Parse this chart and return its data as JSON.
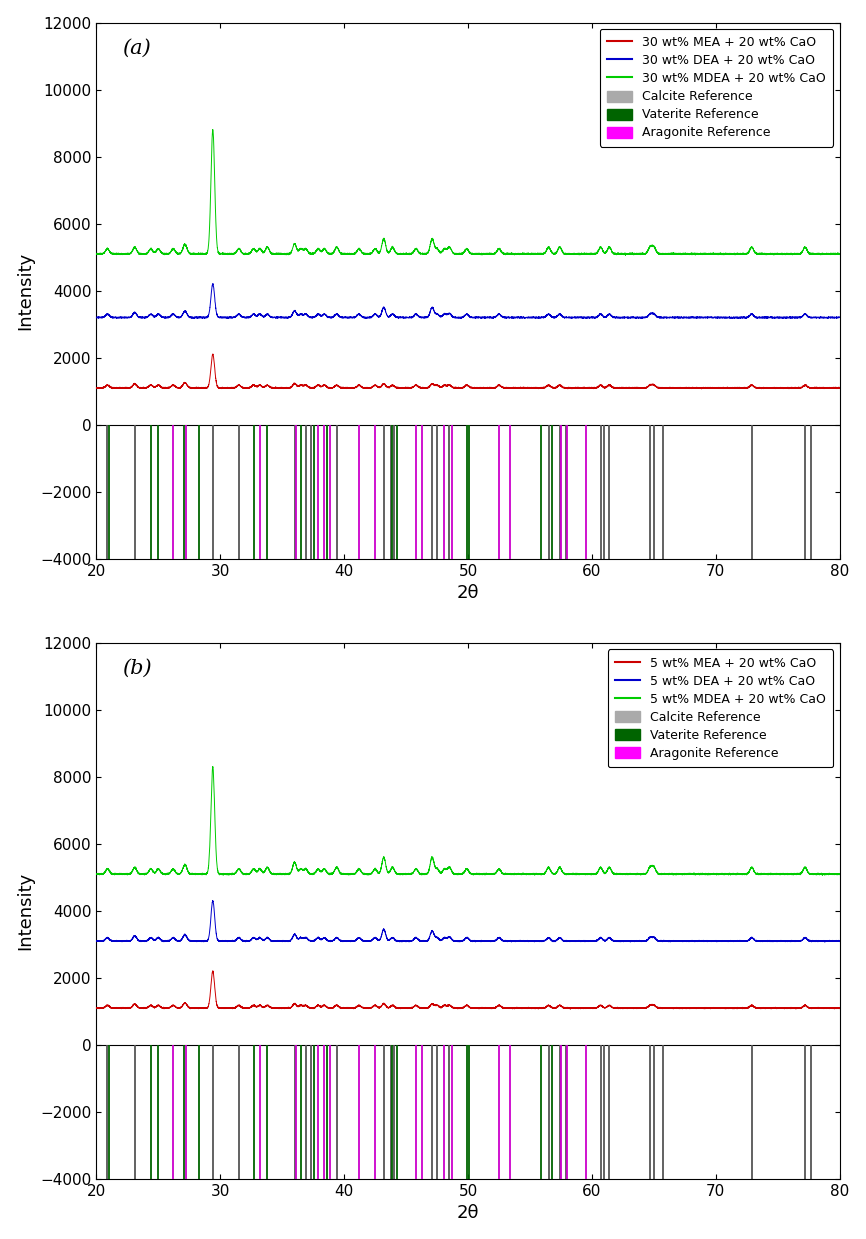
{
  "subplot_labels": [
    "(a)",
    "(b)"
  ],
  "legend_labels_a": [
    "30 wt% MEA + 20 wt% CaO",
    "30 wt% DEA + 20 wt% CaO",
    "30 wt% MDEA + 20 wt% CaO",
    "Calcite Reference",
    "Vaterite Reference",
    "Aragonite Reference"
  ],
  "legend_labels_b": [
    "5 wt% MEA + 20 wt% CaO",
    "5 wt% DEA + 20 wt% CaO",
    "5 wt% MDEA + 20 wt% CaO",
    "Calcite Reference",
    "Vaterite Reference",
    "Aragonite Reference"
  ],
  "line_colors": [
    "#cc0000",
    "#0000cc",
    "#00cc00"
  ],
  "calcite_color": "#555555",
  "vaterite_color": "#006400",
  "aragonite_color": "#cc00cc",
  "xlabel": "2θ",
  "ylabel": "Intensity",
  "ylim": [
    -4000,
    12000
  ],
  "xlim": [
    20,
    80
  ],
  "yticks": [
    -4000,
    -2000,
    0,
    2000,
    4000,
    6000,
    8000,
    10000,
    12000
  ],
  "xticks": [
    20,
    30,
    40,
    50,
    60,
    70,
    80
  ],
  "calcite_ref": [
    20.9,
    23.1,
    29.4,
    31.5,
    36.0,
    36.9,
    37.3,
    39.4,
    43.2,
    43.8,
    44.0,
    47.1,
    47.5,
    48.5,
    56.5,
    57.4,
    57.9,
    60.7,
    61.0,
    61.4,
    64.7,
    65.0,
    65.7,
    72.9,
    77.2,
    77.7
  ],
  "vaterite_ref": [
    21.0,
    24.4,
    25.0,
    27.1,
    28.3,
    32.7,
    33.8,
    36.5,
    37.6,
    38.6,
    43.9,
    44.3,
    49.9,
    50.1,
    55.9,
    56.8
  ],
  "aragonite_ref": [
    26.2,
    27.2,
    33.2,
    36.1,
    37.9,
    38.4,
    38.9,
    41.2,
    42.5,
    45.8,
    46.3,
    48.1,
    48.7,
    52.5,
    53.4,
    57.5,
    58.0,
    59.5
  ],
  "baseline_red_a": 1100,
  "baseline_blue_a": 3200,
  "baseline_green_a": 5100,
  "baseline_red_b": 1100,
  "baseline_blue_b": 3100,
  "baseline_green_b": 5100,
  "noise_level": 8
}
